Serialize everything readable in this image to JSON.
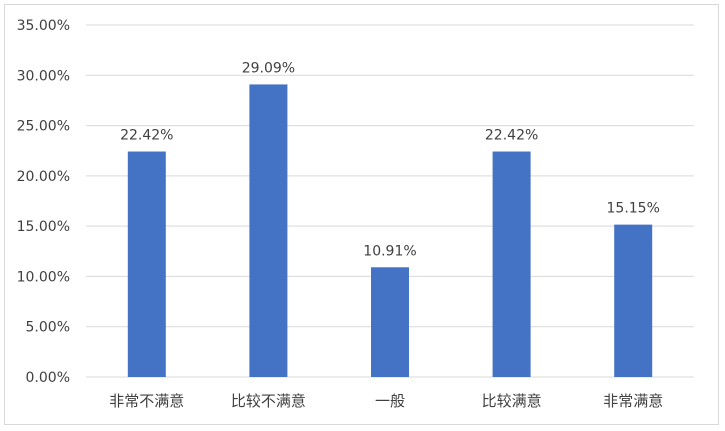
{
  "chart_data": {
    "type": "bar",
    "categories": [
      "非常不满意",
      "比较不满意",
      "一般",
      "比较满意",
      "非常满意"
    ],
    "values": [
      22.42,
      29.09,
      10.91,
      22.42,
      15.15
    ],
    "value_labels": [
      "22.42%",
      "29.09%",
      "10.91%",
      "22.42%",
      "15.15%"
    ],
    "y_ticks": [
      "0.00%",
      "5.00%",
      "10.00%",
      "15.00%",
      "20.00%",
      "25.00%",
      "30.00%",
      "35.00%"
    ],
    "ylim": [
      0,
      35
    ],
    "grid": true,
    "legend": "none",
    "bar_color": "#4472C4",
    "grid_color": "#d9d9d9"
  }
}
